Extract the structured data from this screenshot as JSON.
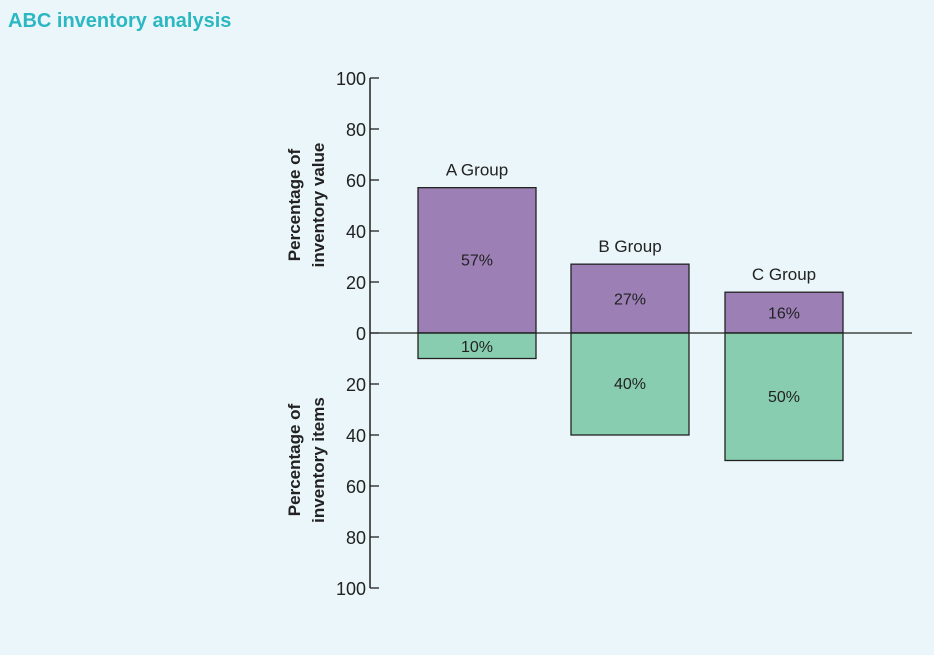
{
  "title": "ABC inventory analysis",
  "chart_data": {
    "type": "bar",
    "categories": [
      "A Group",
      "B Group",
      "C Group"
    ],
    "series": [
      {
        "name": "Percentage of inventory value",
        "values": [
          57,
          27,
          16
        ],
        "labels": [
          "57%",
          "27%",
          "16%"
        ],
        "direction": "up",
        "color": "#9b7fb5"
      },
      {
        "name": "Percentage of inventory items",
        "values": [
          10,
          40,
          50
        ],
        "labels": [
          "10%",
          "40%",
          "50%"
        ],
        "direction": "down",
        "color": "#88cdb0"
      }
    ],
    "ylabel_top": [
      "Percentage of",
      "inventory value"
    ],
    "ylabel_bottom": [
      "Percentage of",
      "inventory items"
    ],
    "ticks_top": [
      "0",
      "20",
      "40",
      "60",
      "80",
      "100"
    ],
    "ticks_bottom": [
      "20",
      "40",
      "60",
      "80",
      "100"
    ],
    "ylim": [
      -100,
      100
    ],
    "grid": false
  }
}
